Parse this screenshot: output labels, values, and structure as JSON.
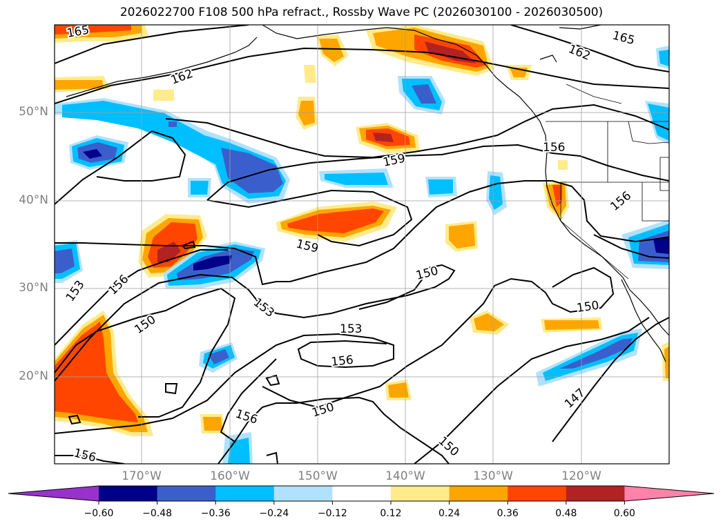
{
  "title": "2026022700 F108 500 hPa refract., Rossby Wave PC (2026030100 - 2026030500)",
  "lat_labels": [
    "50°N",
    "40°N",
    "30°N",
    "20°N"
  ],
  "lon_labels": [
    "170°W",
    "160°W",
    "150°W",
    "140°W",
    "130°W",
    "120°W"
  ],
  "contour_labels": [
    "165",
    "162",
    "162",
    "165",
    "159",
    "156",
    "156",
    "159",
    "153",
    "156",
    "150",
    "153",
    "150",
    "153",
    "156",
    "150",
    "156",
    "150",
    "147",
    "156"
  ],
  "colorbar": {
    "ticks": [
      "−0.60",
      "−0.48",
      "−0.36",
      "−0.24",
      "−0.12",
      "0.12",
      "0.24",
      "0.36",
      "0.48",
      "0.60"
    ],
    "colors": [
      "#9932cc",
      "#00008b",
      "#3a5fcd",
      "#00bfff",
      "#b0e2ff",
      "#ffffff",
      "#ffeb8a",
      "#ffa500",
      "#ff4500",
      "#b22222",
      "#ff82ab"
    ]
  }
}
